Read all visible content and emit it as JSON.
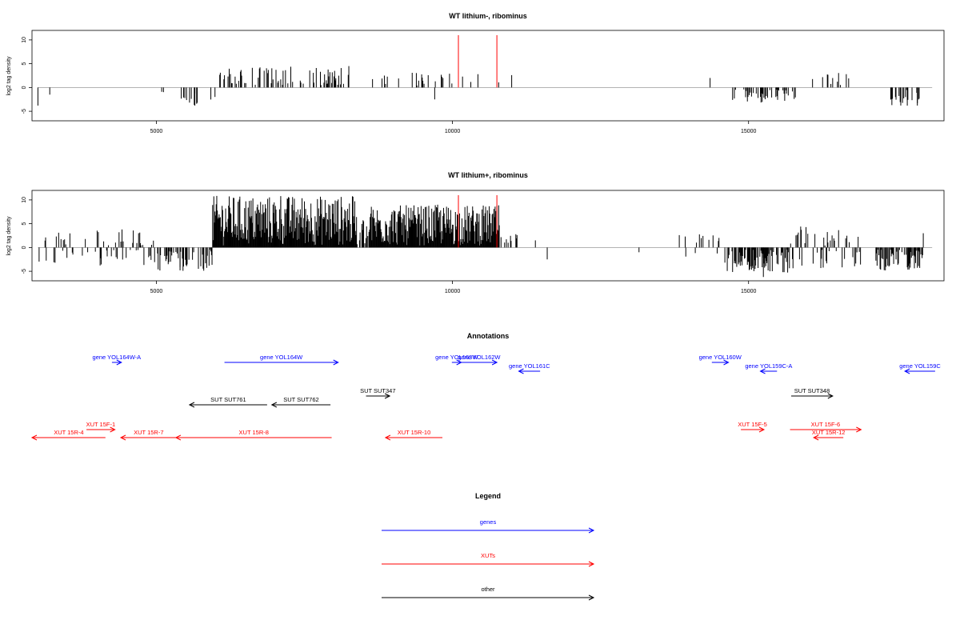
{
  "colors": {
    "genes": "#0000ff",
    "xuts": "#ff0000",
    "other": "#000000",
    "baseline": "#9a9a9a",
    "marker": "#ff0000"
  },
  "chart_data": [
    {
      "type": "bar",
      "title": "WT lithium-, ribominus",
      "ylabel": "log2 tag density",
      "xlim": [
        2900,
        18300
      ],
      "ylim": [
        -7,
        12
      ],
      "xticks": [
        5000,
        10000,
        15000
      ],
      "yticks": [
        -5,
        0,
        5,
        10
      ],
      "red_markers": [
        10100,
        10750
      ],
      "segments": [
        {
          "from": 3000,
          "to": 3500,
          "density": 0,
          "amp": 2,
          "sign": -1
        },
        {
          "from": 5000,
          "to": 5200,
          "density": 0.08,
          "amp": 2,
          "sign": -1
        },
        {
          "from": 5400,
          "to": 5700,
          "density": 0.35,
          "amp": 3.5,
          "sign": -1
        },
        {
          "from": 5900,
          "to": 6050,
          "density": 0.2,
          "amp": 3,
          "sign": 0
        },
        {
          "from": 6050,
          "to": 8300,
          "density": 0.32,
          "amp": 4,
          "sign": 1
        },
        {
          "from": 8650,
          "to": 9100,
          "density": 0.15,
          "amp": 2.5,
          "sign": 1
        },
        {
          "from": 9300,
          "to": 10200,
          "density": 0.18,
          "amp": 2.8,
          "sign": 1
        },
        {
          "from": 10300,
          "to": 10800,
          "density": 0.1,
          "amp": 2.5,
          "sign": 1
        },
        {
          "from": 14300,
          "to": 14700,
          "density": 0.05,
          "amp": 2,
          "sign": 1
        },
        {
          "from": 14700,
          "to": 15800,
          "density": 0.3,
          "amp": 3,
          "sign": -1
        },
        {
          "from": 15950,
          "to": 16700,
          "density": 0.14,
          "amp": 3,
          "sign": 1
        },
        {
          "from": 17400,
          "to": 17900,
          "density": 0.4,
          "amp": 3.5,
          "sign": -1
        }
      ],
      "spikes": [
        [
          3000,
          -3.8
        ],
        [
          3200,
          -1.5
        ],
        [
          5650,
          -3.8
        ],
        [
          8250,
          4.5
        ],
        [
          9700,
          -2.5
        ],
        [
          11000,
          2.6
        ],
        [
          14350,
          2
        ],
        [
          16650,
          2.8
        ],
        [
          17850,
          -3.8
        ]
      ]
    },
    {
      "type": "bar",
      "title": "WT lithium+, ribominus",
      "ylabel": "log2 tag density",
      "xlim": [
        2900,
        18300
      ],
      "ylim": [
        -7,
        12
      ],
      "xticks": [
        5000,
        10000,
        15000
      ],
      "yticks": [
        -5,
        0,
        5,
        10
      ],
      "red_markers": [
        10100,
        10750
      ],
      "segments": [
        {
          "from": 3000,
          "to": 4000,
          "density": 0.25,
          "amp": 3,
          "sign": 0
        },
        {
          "from": 4000,
          "to": 5000,
          "density": 0.3,
          "amp": 3.5,
          "sign": 0
        },
        {
          "from": 5000,
          "to": 5950,
          "density": 0.45,
          "amp": 4.5,
          "sign": -1
        },
        {
          "from": 5950,
          "to": 8400,
          "density": 1,
          "amp": 10.5,
          "sign": 1
        },
        {
          "from": 8400,
          "to": 8600,
          "density": 0.5,
          "amp": 6,
          "sign": 1
        },
        {
          "from": 8600,
          "to": 10800,
          "density": 1,
          "amp": 8.5,
          "sign": 1
        },
        {
          "from": 10800,
          "to": 11100,
          "density": 0.4,
          "amp": 2.5,
          "sign": 1
        },
        {
          "from": 13600,
          "to": 14600,
          "density": 0.12,
          "amp": 2.5,
          "sign": 0
        },
        {
          "from": 14600,
          "to": 15700,
          "density": 0.75,
          "amp": 5,
          "sign": -1
        },
        {
          "from": 15700,
          "to": 16900,
          "density": 0.4,
          "amp": 4,
          "sign": 0
        },
        {
          "from": 17150,
          "to": 17950,
          "density": 0.6,
          "amp": 4.5,
          "sign": -1
        }
      ],
      "spikes": [
        [
          4700,
          3
        ],
        [
          5400,
          -4.8
        ],
        [
          7100,
          10.8
        ],
        [
          9750,
          9
        ],
        [
          11400,
          1.5
        ],
        [
          11600,
          -2.5
        ],
        [
          13150,
          -1
        ],
        [
          15250,
          -6.2
        ],
        [
          17950,
          3
        ]
      ]
    }
  ],
  "annotations": {
    "title": "Annotations",
    "xlim": [
      2900,
      18300
    ],
    "features": [
      {
        "label": "gene YOL164W-A",
        "x1": 4250,
        "x2": 4410,
        "dir": "right",
        "type": "gene",
        "row": 0
      },
      {
        "label": "gene YOL164W",
        "x1": 6150,
        "x2": 8070,
        "dir": "right",
        "type": "gene",
        "row": 0
      },
      {
        "label": "gene YOL163W",
        "x1": 9990,
        "x2": 10150,
        "dir": "right",
        "type": "gene",
        "row": 0
      },
      {
        "label": "gene YOL162W",
        "x1": 10150,
        "x2": 10750,
        "dir": "right",
        "type": "gene",
        "row": 0
      },
      {
        "label": "gene YOL161C",
        "x1": 11120,
        "x2": 11480,
        "dir": "left",
        "type": "gene",
        "row": 1
      },
      {
        "label": "gene YOL160W",
        "x1": 14380,
        "x2": 14660,
        "dir": "right",
        "type": "gene",
        "row": 0
      },
      {
        "label": "gene YOL159C-A",
        "x1": 15200,
        "x2": 15480,
        "dir": "left",
        "type": "gene",
        "row": 1
      },
      {
        "label": "gene YOL159C",
        "x1": 17640,
        "x2": 18150,
        "dir": "left",
        "type": "gene",
        "row": 1
      },
      {
        "label": "SUT SUT347",
        "x1": 8540,
        "x2": 8940,
        "dir": "right",
        "type": "other",
        "row": 2
      },
      {
        "label": "SUT SUT761",
        "x1": 5560,
        "x2": 6870,
        "dir": "left",
        "type": "other",
        "row": 3
      },
      {
        "label": "SUT SUT762",
        "x1": 6950,
        "x2": 7940,
        "dir": "left",
        "type": "other",
        "row": 3
      },
      {
        "label": "SUT SUT348",
        "x1": 15720,
        "x2": 16420,
        "dir": "right",
        "type": "other",
        "row": 2
      },
      {
        "label": "XUT 15F-1",
        "x1": 3820,
        "x2": 4300,
        "dir": "right",
        "type": "xut",
        "row": 4
      },
      {
        "label": "XUT 15R-4",
        "x1": 2900,
        "x2": 4140,
        "dir": "left",
        "type": "xut",
        "row": 5
      },
      {
        "label": "XUT 15R-7",
        "x1": 4400,
        "x2": 5340,
        "dir": "left",
        "type": "xut",
        "row": 5
      },
      {
        "label": "XUT 15R-8",
        "x1": 5330,
        "x2": 7960,
        "dir": "left",
        "type": "xut",
        "row": 5
      },
      {
        "label": "XUT 15R-10",
        "x1": 8870,
        "x2": 9830,
        "dir": "left",
        "type": "xut",
        "row": 5
      },
      {
        "label": "XUT 15F-5",
        "x1": 14870,
        "x2": 15260,
        "dir": "right",
        "type": "xut",
        "row": 4
      },
      {
        "label": "XUT 15F-6",
        "x1": 15700,
        "x2": 16900,
        "dir": "right",
        "type": "xut",
        "row": 4
      },
      {
        "label": "XUT 15R-12",
        "x1": 16100,
        "x2": 16600,
        "dir": "left",
        "type": "xut",
        "row": 5
      }
    ]
  },
  "legend": {
    "title": "Legend",
    "items": [
      {
        "label": "genes",
        "type": "gene"
      },
      {
        "label": "XUTs",
        "type": "xut"
      },
      {
        "label": "other",
        "type": "other"
      }
    ]
  }
}
